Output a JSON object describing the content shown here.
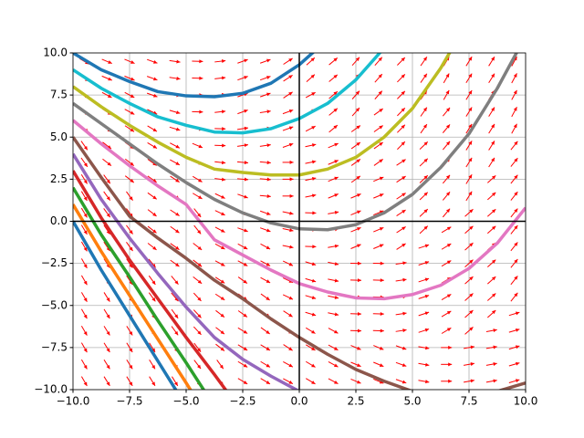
{
  "chart_data": {
    "type": "line",
    "x": [
      -10,
      -8.75,
      -7.5,
      -6.25,
      -5,
      -3.75,
      -2.5,
      -1.25,
      0,
      1.25,
      2.5,
      3.75,
      5,
      6.25,
      7.5,
      8.75,
      10
    ],
    "series": [
      {
        "color": "#1f77b4",
        "values": [
          0,
          -2.9,
          -5.6,
          -8.3,
          -11,
          null,
          null,
          null,
          null,
          null,
          null,
          null,
          null,
          null,
          null,
          null,
          null
        ]
      },
      {
        "color": "#ff7f0e",
        "values": [
          1,
          -1.8,
          -4.4,
          -7,
          -9.6,
          -12.3,
          null,
          null,
          null,
          null,
          null,
          null,
          null,
          null,
          null,
          null,
          null
        ]
      },
      {
        "color": "#2ca02c",
        "values": [
          2,
          -0.8,
          -3.3,
          -5.9,
          -8.4,
          -11,
          null,
          null,
          null,
          null,
          null,
          null,
          null,
          null,
          null,
          null,
          null
        ]
      },
      {
        "color": "#d62728",
        "values": [
          3,
          0.2,
          -2.3,
          -4.6,
          -6.9,
          -9.1,
          -11.4,
          null,
          null,
          null,
          null,
          null,
          null,
          null,
          null,
          null,
          null
        ]
      },
      {
        "color": "#9467bd",
        "values": [
          4,
          1.3,
          -1,
          -3.1,
          -5.1,
          -6.9,
          -8.2,
          -9.2,
          -10.1,
          null,
          null,
          null,
          null,
          null,
          null,
          null,
          null
        ]
      },
      {
        "color": "#8c564b",
        "values": [
          5,
          2.6,
          0.3,
          -1,
          -2.2,
          -3.5,
          -4.6,
          -5.8,
          -6.9,
          -7.9,
          -8.8,
          -9.5,
          -10.1,
          -10.4,
          -10.4,
          -10.1,
          -9.6
        ]
      },
      {
        "color": "#e377c2",
        "values": [
          6,
          4.6,
          3.3,
          2.1,
          1,
          -1.1,
          -2,
          -2.9,
          -3.7,
          -4.2,
          -4.55,
          -4.6,
          -4.35,
          -3.8,
          -2.8,
          -1.3,
          0.8
        ]
      },
      {
        "color": "#7f7f7f",
        "values": [
          7,
          5.8,
          4.6,
          3.4,
          2.3,
          1.3,
          0.5,
          -0.1,
          -0.45,
          -0.5,
          -0.2,
          0.5,
          1.6,
          3.2,
          5.2,
          7.9,
          11
        ]
      },
      {
        "color": "#bcbd22",
        "values": [
          8,
          6.8,
          5.7,
          4.7,
          3.8,
          3.1,
          2.9,
          2.75,
          2.75,
          3.1,
          3.8,
          5,
          6.7,
          9.1,
          12,
          null,
          null
        ]
      },
      {
        "color": "#17becf",
        "values": [
          9,
          7.9,
          7,
          6.2,
          5.7,
          5.3,
          5.25,
          5.5,
          6.1,
          7,
          8.4,
          10.3,
          null,
          null,
          null,
          null,
          null
        ]
      },
      {
        "color": "#1f77b4",
        "values": [
          10,
          9,
          8.3,
          7.7,
          7.45,
          7.4,
          7.6,
          8.2,
          9.3,
          10.8,
          null,
          null,
          null,
          null,
          null,
          null,
          null
        ]
      }
    ],
    "xlim": [
      -10,
      10
    ],
    "ylim": [
      -10,
      10
    ],
    "xticks": [
      {
        "value": -10,
        "label": "−10.0"
      },
      {
        "value": -7.5,
        "label": "−7.5"
      },
      {
        "value": -5,
        "label": "−5.0"
      },
      {
        "value": -2.5,
        "label": "−2.5"
      },
      {
        "value": 0,
        "label": "0.0"
      },
      {
        "value": 2.5,
        "label": "2.5"
      },
      {
        "value": 5,
        "label": "5.0"
      },
      {
        "value": 7.5,
        "label": "7.5"
      },
      {
        "value": 10,
        "label": "10.0"
      }
    ],
    "yticks": [
      {
        "value": -10,
        "label": "−10.0"
      },
      {
        "value": -7.5,
        "label": "−7.5"
      },
      {
        "value": -5,
        "label": "−5.0"
      },
      {
        "value": -2.5,
        "label": "−2.5"
      },
      {
        "value": 0,
        "label": "0.0"
      },
      {
        "value": 2.5,
        "label": "2.5"
      },
      {
        "value": 5,
        "label": "5.0"
      },
      {
        "value": 7.5,
        "label": "7.5"
      },
      {
        "value": 10,
        "label": "10.0"
      }
    ],
    "grid": true,
    "field_color": "#ff0000"
  }
}
